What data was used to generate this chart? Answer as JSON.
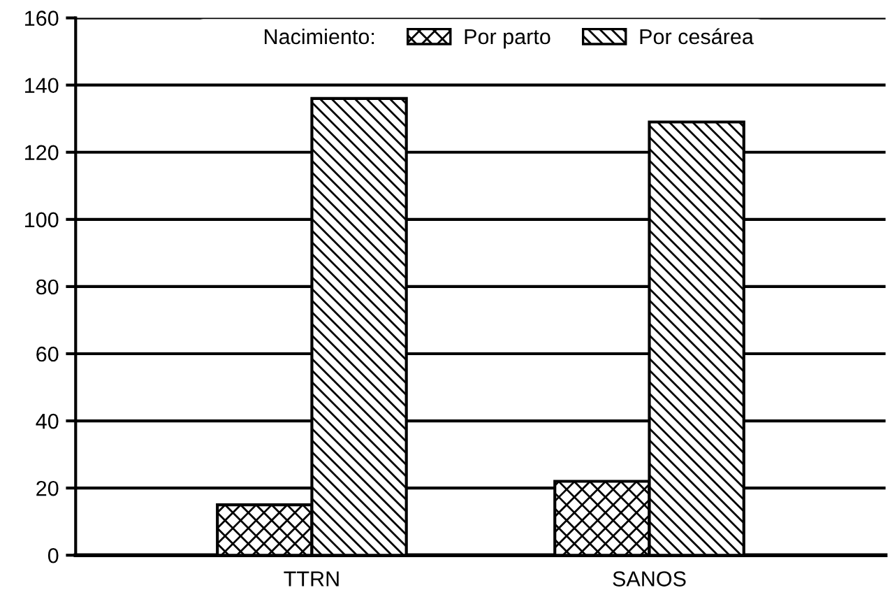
{
  "chart_data": {
    "type": "bar",
    "legend_title": "Nacimiento:",
    "categories": [
      "TTRN",
      "SANOS"
    ],
    "series": [
      {
        "name": "Por parto",
        "color": "#000000",
        "values": [
          15,
          22
        ]
      },
      {
        "name": "Por cesárea",
        "color": "#000000",
        "values": [
          136,
          129
        ]
      }
    ],
    "ylim": [
      0,
      160
    ],
    "yticks": [
      0,
      20,
      40,
      60,
      80,
      100,
      120,
      140,
      160
    ],
    "grid": "y",
    "legend": "top"
  }
}
